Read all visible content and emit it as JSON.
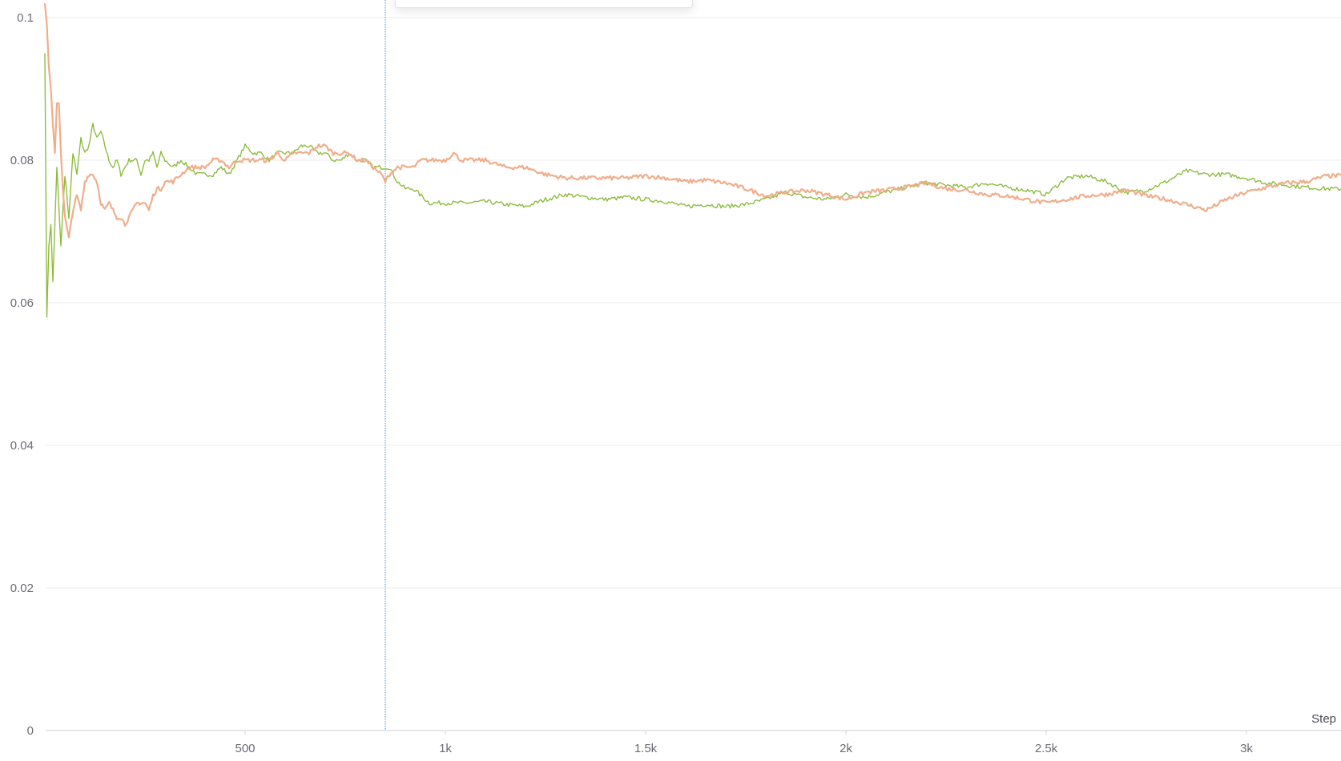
{
  "chart_data": {
    "type": "line",
    "xlabel": "Step",
    "ylabel": "",
    "xlim": [
      0,
      3250
    ],
    "ylim": [
      0,
      0.1
    ],
    "grid": true,
    "x_ticks": [
      {
        "value": 500,
        "label": "500"
      },
      {
        "value": 1000,
        "label": "1k"
      },
      {
        "value": 1500,
        "label": "1.5k"
      },
      {
        "value": 2000,
        "label": "2k"
      },
      {
        "value": 2500,
        "label": "2.5k"
      },
      {
        "value": 3000,
        "label": "3k"
      }
    ],
    "y_ticks": [
      {
        "value": 0,
        "label": "0"
      },
      {
        "value": 0.02,
        "label": "0.02"
      },
      {
        "value": 0.04,
        "label": "0.04"
      },
      {
        "value": 0.06,
        "label": "0.06"
      },
      {
        "value": 0.08,
        "label": "0.08"
      },
      {
        "value": 0.1,
        "label": "0.1"
      }
    ],
    "hover_step": 850,
    "series": [
      {
        "color": "#8fbc3f",
        "width": 1.4,
        "x": [
          0,
          5,
          10,
          15,
          20,
          30,
          40,
          50,
          60,
          70,
          80,
          90,
          100,
          110,
          120,
          130,
          140,
          150,
          160,
          170,
          180,
          190,
          200,
          210,
          220,
          230,
          240,
          250,
          260,
          270,
          280,
          290,
          300,
          320,
          340,
          360,
          380,
          400,
          420,
          440,
          460,
          480,
          500,
          520,
          540,
          560,
          580,
          600,
          620,
          640,
          660,
          680,
          700,
          720,
          740,
          760,
          780,
          800,
          820,
          840,
          860,
          880,
          900,
          920,
          940,
          960,
          980,
          1000,
          1050,
          1100,
          1150,
          1200,
          1250,
          1300,
          1350,
          1400,
          1450,
          1500,
          1550,
          1600,
          1650,
          1700,
          1750,
          1800,
          1850,
          1900,
          1950,
          2000,
          2050,
          2100,
          2150,
          2200,
          2250,
          2300,
          2350,
          2400,
          2450,
          2500,
          2550,
          2600,
          2650,
          2700,
          2750,
          2800,
          2850,
          2900,
          2950,
          3000,
          3050,
          3100,
          3150,
          3200,
          3250
        ],
        "y": [
          0.095,
          0.058,
          0.068,
          0.071,
          0.063,
          0.079,
          0.068,
          0.078,
          0.072,
          0.081,
          0.078,
          0.083,
          0.081,
          0.082,
          0.085,
          0.083,
          0.084,
          0.082,
          0.08,
          0.079,
          0.08,
          0.078,
          0.079,
          0.08,
          0.08,
          0.08,
          0.078,
          0.08,
          0.08,
          0.081,
          0.079,
          0.081,
          0.08,
          0.079,
          0.08,
          0.079,
          0.078,
          0.078,
          0.078,
          0.079,
          0.078,
          0.08,
          0.082,
          0.081,
          0.081,
          0.08,
          0.081,
          0.081,
          0.081,
          0.082,
          0.082,
          0.081,
          0.081,
          0.08,
          0.08,
          0.081,
          0.08,
          0.08,
          0.079,
          0.079,
          0.079,
          0.077,
          0.076,
          0.076,
          0.075,
          0.074,
          0.074,
          0.074,
          0.074,
          0.0742,
          0.0738,
          0.0735,
          0.0745,
          0.0752,
          0.0748,
          0.0745,
          0.0748,
          0.0745,
          0.0742,
          0.0735,
          0.0738,
          0.0735,
          0.0738,
          0.0745,
          0.0755,
          0.0748,
          0.0745,
          0.0752,
          0.0748,
          0.0755,
          0.0762,
          0.0768,
          0.0765,
          0.0762,
          0.0768,
          0.0762,
          0.0758,
          0.0752,
          0.0775,
          0.0778,
          0.077,
          0.0755,
          0.0758,
          0.077,
          0.0785,
          0.078,
          0.078,
          0.0775,
          0.0768,
          0.0765,
          0.0762,
          0.076,
          0.076
        ]
      },
      {
        "color": "#f0ad8b",
        "width": 2.2,
        "x": [
          0,
          5,
          10,
          15,
          20,
          25,
          30,
          35,
          40,
          45,
          50,
          60,
          70,
          80,
          90,
          100,
          110,
          120,
          130,
          140,
          150,
          160,
          170,
          180,
          190,
          200,
          210,
          220,
          230,
          240,
          250,
          260,
          270,
          280,
          290,
          300,
          320,
          340,
          360,
          380,
          400,
          420,
          440,
          460,
          480,
          500,
          520,
          540,
          560,
          580,
          600,
          620,
          640,
          660,
          680,
          700,
          720,
          740,
          760,
          780,
          800,
          820,
          840,
          850,
          860,
          880,
          900,
          920,
          940,
          960,
          980,
          1000,
          1020,
          1040,
          1060,
          1080,
          1100,
          1150,
          1200,
          1250,
          1300,
          1350,
          1400,
          1450,
          1500,
          1550,
          1600,
          1650,
          1700,
          1750,
          1800,
          1850,
          1900,
          1950,
          2000,
          2050,
          2100,
          2150,
          2200,
          2250,
          2300,
          2350,
          2400,
          2450,
          2500,
          2550,
          2600,
          2650,
          2700,
          2750,
          2800,
          2850,
          2900,
          2950,
          3000,
          3050,
          3100,
          3150,
          3200,
          3250
        ],
        "y": [
          0.102,
          0.099,
          0.093,
          0.09,
          0.085,
          0.081,
          0.088,
          0.088,
          0.081,
          0.076,
          0.072,
          0.069,
          0.073,
          0.075,
          0.073,
          0.077,
          0.078,
          0.078,
          0.077,
          0.074,
          0.073,
          0.074,
          0.073,
          0.072,
          0.072,
          0.071,
          0.072,
          0.073,
          0.074,
          0.074,
          0.074,
          0.073,
          0.075,
          0.076,
          0.076,
          0.077,
          0.077,
          0.078,
          0.079,
          0.079,
          0.079,
          0.08,
          0.08,
          0.079,
          0.08,
          0.08,
          0.08,
          0.08,
          0.08,
          0.081,
          0.08,
          0.081,
          0.081,
          0.081,
          0.082,
          0.082,
          0.081,
          0.081,
          0.081,
          0.08,
          0.08,
          0.079,
          0.078,
          0.077,
          0.078,
          0.079,
          0.079,
          0.079,
          0.08,
          0.08,
          0.08,
          0.08,
          0.081,
          0.08,
          0.08,
          0.08,
          0.08,
          0.079,
          0.079,
          0.078,
          0.0775,
          0.0775,
          0.0775,
          0.0775,
          0.0778,
          0.0775,
          0.077,
          0.0772,
          0.0768,
          0.076,
          0.075,
          0.0755,
          0.0758,
          0.0752,
          0.0745,
          0.0755,
          0.0758,
          0.0762,
          0.0768,
          0.076,
          0.0758,
          0.0752,
          0.075,
          0.0745,
          0.074,
          0.0745,
          0.075,
          0.0752,
          0.0758,
          0.075,
          0.0745,
          0.0738,
          0.073,
          0.0745,
          0.0755,
          0.0762,
          0.0768,
          0.077,
          0.0778,
          0.0778
        ]
      }
    ]
  }
}
